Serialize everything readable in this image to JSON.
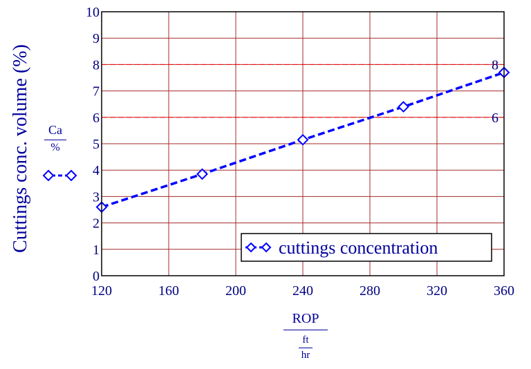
{
  "chart_data": {
    "type": "line",
    "ylabel": "Cuttings conc. volume (%)",
    "y_unit": {
      "numerator": "Ca",
      "denominator": "%"
    },
    "x_unit": {
      "numerator": "ROP",
      "denominator_top": "ft",
      "denominator_bottom": "hr"
    },
    "xlim": [
      120,
      360
    ],
    "ylim": [
      0,
      10
    ],
    "x_ticks": [
      120,
      160,
      200,
      240,
      280,
      320,
      360
    ],
    "y_ticks": [
      0,
      1,
      2,
      3,
      4,
      5,
      6,
      7,
      8,
      9,
      10
    ],
    "x_tick_labels": [
      "120",
      "160",
      "200",
      "240",
      "280",
      "320",
      "360"
    ],
    "y_tick_labels": [
      "0",
      "1",
      "2",
      "3",
      "4",
      "5",
      "6",
      "7",
      "8",
      "9",
      "10"
    ],
    "grid": true,
    "reference_lines": [
      {
        "y": 8,
        "label": "8",
        "color": "#ff0000"
      },
      {
        "y": 6,
        "label": "6",
        "color": "#ff0000"
      }
    ],
    "series": [
      {
        "name": "cuttings concentration",
        "color": "#0000ff",
        "style": "dashed",
        "marker": "diamond",
        "x": [
          120,
          180,
          240,
          300,
          360
        ],
        "y": [
          2.6,
          3.85,
          5.15,
          6.4,
          7.7
        ]
      }
    ],
    "legend_position": "bottom-right"
  }
}
